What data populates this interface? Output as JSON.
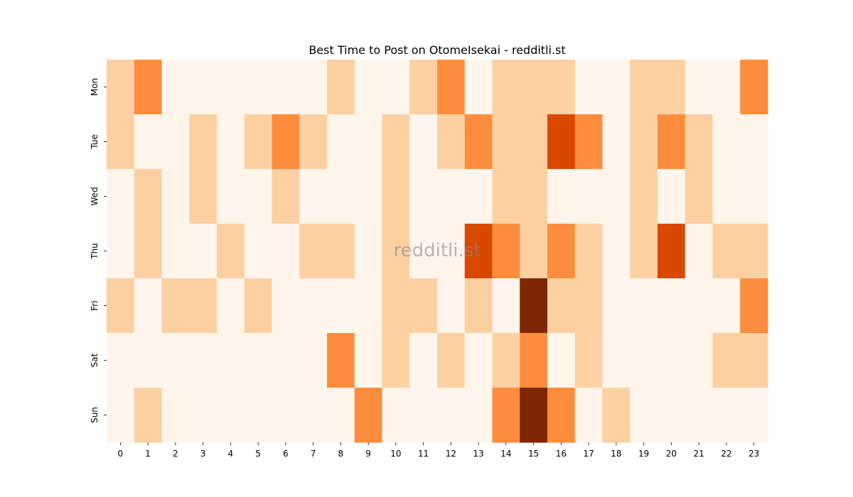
{
  "chart_data": {
    "type": "heatmap",
    "title": "Best Time to Post on OtomeIsekai - redditli.st",
    "watermark": "redditli.st",
    "x_categories": [
      "0",
      "1",
      "2",
      "3",
      "4",
      "5",
      "6",
      "7",
      "8",
      "9",
      "10",
      "11",
      "12",
      "13",
      "14",
      "15",
      "16",
      "17",
      "18",
      "19",
      "20",
      "21",
      "22",
      "23"
    ],
    "y_categories": [
      "Mon",
      "Tue",
      "Wed",
      "Thu",
      "Fri",
      "Sat",
      "Sun"
    ],
    "xlabel": "",
    "ylabel": "",
    "colormap": "Oranges",
    "value_range": [
      0,
      4
    ],
    "colors": [
      "#fff5eb",
      "#fdd0a2",
      "#fd8d3c",
      "#d94801",
      "#7f2704"
    ],
    "grid": false,
    "legend": "none",
    "values": [
      [
        1,
        2,
        0,
        0,
        0,
        0,
        0,
        0,
        1,
        0,
        0,
        1,
        2,
        0,
        1,
        1,
        1,
        0,
        0,
        1,
        1,
        0,
        0,
        2
      ],
      [
        1,
        0,
        0,
        1,
        0,
        1,
        2,
        1,
        0,
        0,
        1,
        0,
        1,
        2,
        1,
        1,
        3,
        2,
        0,
        1,
        2,
        1,
        0,
        0
      ],
      [
        0,
        1,
        0,
        1,
        0,
        0,
        1,
        0,
        0,
        0,
        1,
        0,
        0,
        0,
        1,
        1,
        0,
        0,
        0,
        1,
        0,
        1,
        0,
        0
      ],
      [
        0,
        1,
        0,
        0,
        1,
        0,
        0,
        1,
        1,
        0,
        1,
        0,
        0,
        3,
        2,
        1,
        2,
        1,
        0,
        1,
        3,
        0,
        1,
        1
      ],
      [
        1,
        0,
        1,
        1,
        0,
        1,
        0,
        0,
        0,
        0,
        1,
        1,
        0,
        1,
        0,
        4,
        1,
        1,
        0,
        0,
        0,
        0,
        0,
        2
      ],
      [
        0,
        0,
        0,
        0,
        0,
        0,
        0,
        0,
        2,
        0,
        1,
        0,
        1,
        0,
        1,
        2,
        0,
        1,
        0,
        0,
        0,
        0,
        1,
        1
      ],
      [
        0,
        1,
        0,
        0,
        0,
        0,
        0,
        0,
        0,
        2,
        0,
        0,
        0,
        0,
        2,
        4,
        2,
        0,
        1,
        0,
        0,
        0,
        0,
        0
      ]
    ]
  }
}
